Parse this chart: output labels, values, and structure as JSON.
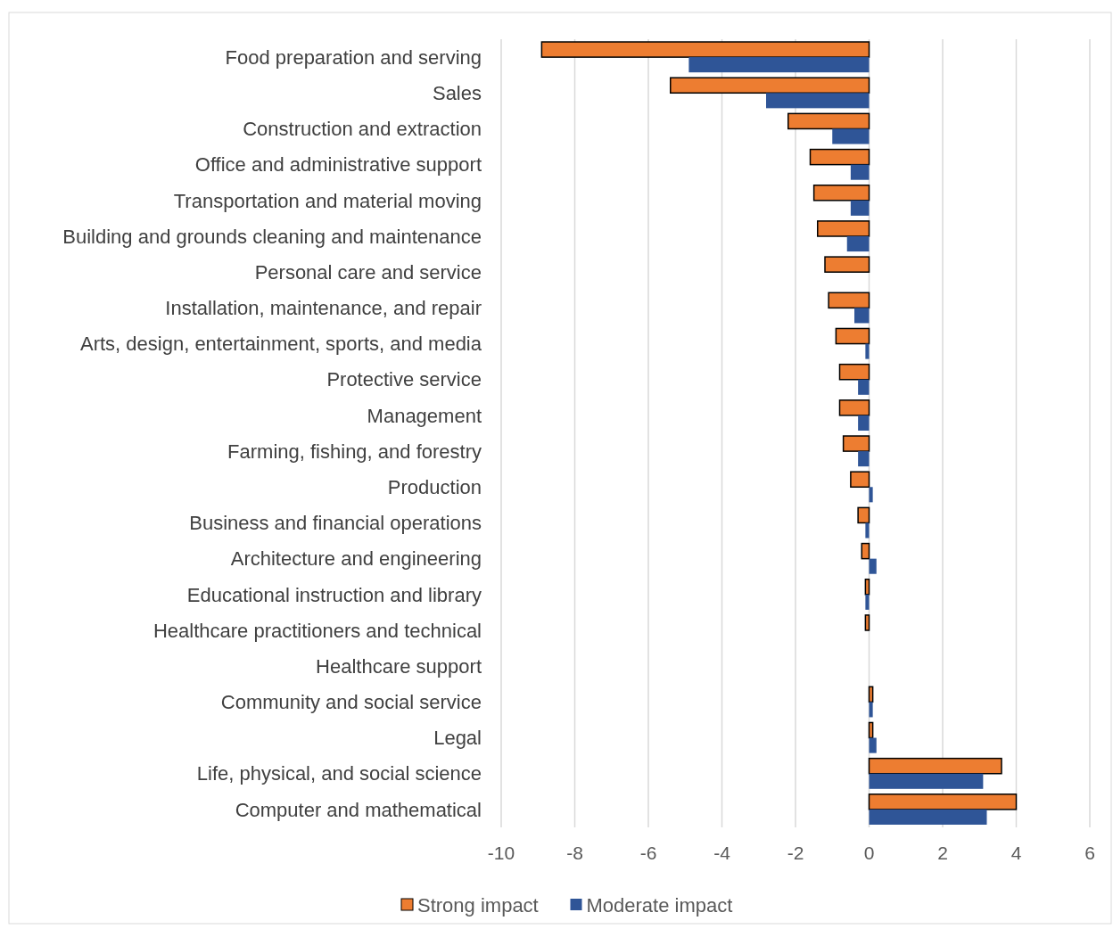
{
  "chart_data": {
    "type": "bar",
    "orientation": "horizontal",
    "categories": [
      "Food preparation and serving",
      "Sales",
      "Construction and extraction",
      "Office and administrative support",
      "Transportation and material moving",
      "Building and grounds cleaning and maintenance",
      "Personal care and service",
      "Installation, maintenance, and repair",
      "Arts, design, entertainment, sports, and media",
      "Protective service",
      "Management",
      "Farming, fishing, and forestry",
      "Production",
      "Business and financial operations",
      "Architecture and engineering",
      "Educational instruction and library",
      "Healthcare practitioners and technical",
      "Healthcare support",
      "Community and social service",
      "Legal",
      "Life, physical, and social science",
      "Computer and mathematical"
    ],
    "series": [
      {
        "name": "Strong impact",
        "color": "#ed7d31",
        "values": [
          -8.9,
          -5.4,
          -2.2,
          -1.6,
          -1.5,
          -1.4,
          -1.2,
          -1.1,
          -0.9,
          -0.8,
          -0.8,
          -0.7,
          -0.5,
          -0.3,
          -0.2,
          -0.1,
          -0.1,
          null,
          0.1,
          0.1,
          3.6,
          4.0
        ]
      },
      {
        "name": "Moderate impact",
        "color": "#2f5597",
        "values": [
          -4.9,
          -2.8,
          -1.0,
          -0.5,
          -0.5,
          -0.6,
          null,
          -0.4,
          -0.1,
          -0.3,
          -0.3,
          -0.3,
          0.1,
          -0.1,
          0.2,
          -0.1,
          null,
          null,
          0.1,
          0.2,
          3.1,
          3.2
        ]
      }
    ],
    "xlim": [
      -10,
      6
    ],
    "xticks": [
      -10,
      -8,
      -6,
      -4,
      -2,
      0,
      2,
      4,
      6
    ],
    "grid": "x",
    "legend": "bottom"
  }
}
